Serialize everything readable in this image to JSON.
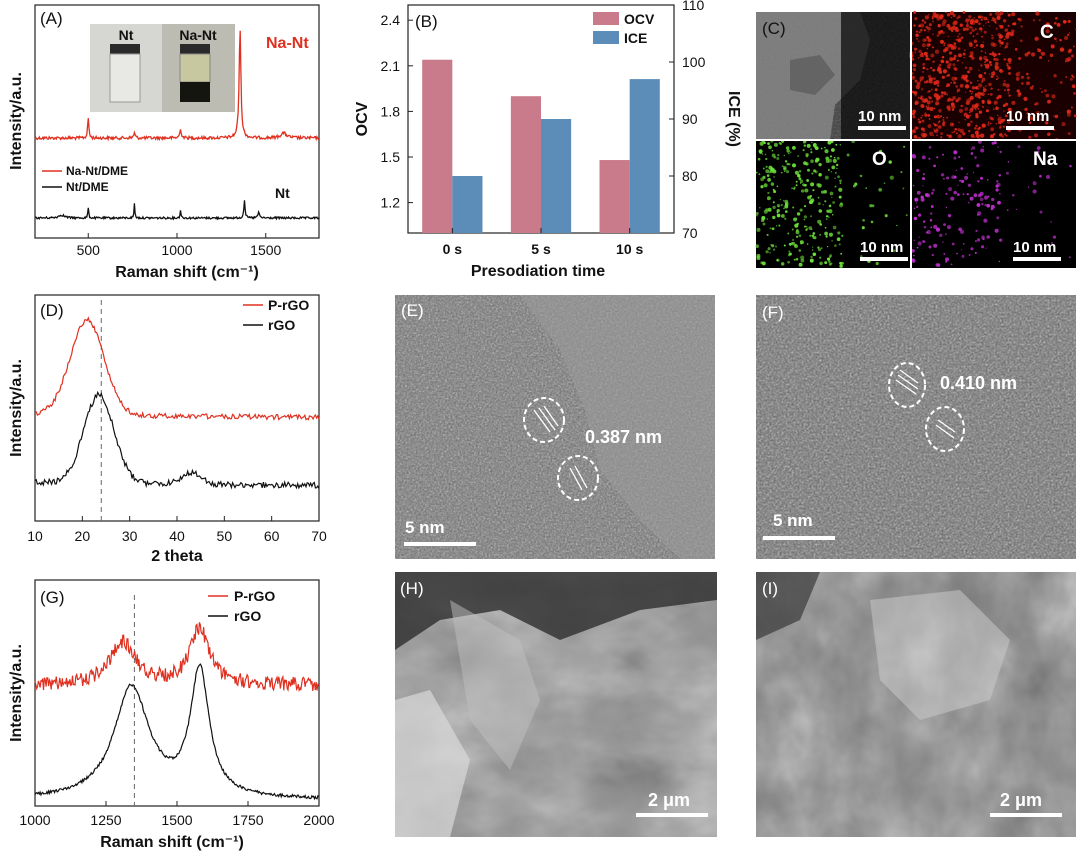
{
  "chart_data": [
    {
      "panel": "(A)",
      "type": "line",
      "xlabel": "Raman shift (cm⁻¹)",
      "ylabel": "Intensity/a.u.",
      "xlim": [
        200,
        1800
      ],
      "x_ticks": [
        "500",
        "1000",
        "1500"
      ],
      "series": [
        {
          "name": "Na-Nt/DME",
          "color": "#e03020",
          "peaks_x": [
            500,
            760,
            1020,
            1355
          ]
        },
        {
          "name": "Nt/DME",
          "color": "#111111",
          "peaks_x": [
            500,
            760,
            1020,
            1380
          ]
        }
      ],
      "curve_labels": [
        "Na-Nt",
        "Nt"
      ],
      "inset_labels": [
        "Nt",
        "Na-Nt"
      ]
    },
    {
      "panel": "(B)",
      "type": "bar",
      "xlabel": "Presodiation time",
      "ylabel": "OCV",
      "y2label": "ICE (%)",
      "categories": [
        "0 s",
        "5 s",
        "10 s"
      ],
      "ylim": [
        1.0,
        2.5
      ],
      "y_ticks": [
        "1.2",
        "1.5",
        "1.8",
        "2.1",
        "2.4"
      ],
      "y2lim": [
        70,
        110
      ],
      "y2_ticks": [
        "70",
        "80",
        "90",
        "100",
        "110"
      ],
      "series": [
        {
          "name": "OCV",
          "axis": "left",
          "color": "#c97b8c",
          "values": [
            2.14,
            1.9,
            1.48
          ]
        },
        {
          "name": "ICE",
          "axis": "right",
          "color": "#5b8db8",
          "values": [
            80,
            90,
            97
          ]
        }
      ]
    },
    {
      "panel": "(D)",
      "type": "line",
      "xlabel": "2 theta",
      "ylabel": "Intensity/a.u.",
      "xlim": [
        10,
        70
      ],
      "x_ticks": [
        "10",
        "20",
        "30",
        "40",
        "50",
        "60",
        "70"
      ],
      "dashed_line_x": 24,
      "series": [
        {
          "name": "P-rGO",
          "color": "#e03020",
          "peak_x": 21
        },
        {
          "name": "rGO",
          "color": "#111111",
          "peak_x": 23.5
        }
      ]
    },
    {
      "panel": "(G)",
      "type": "line",
      "xlabel": "Raman shift (cm⁻¹)",
      "ylabel": "Intensity/a.u.",
      "xlim": [
        1000,
        2000
      ],
      "x_ticks": [
        "1000",
        "1250",
        "1500",
        "1750",
        "2000"
      ],
      "dashed_line_x": 1350,
      "series": [
        {
          "name": "P-rGO",
          "color": "#e03020",
          "peaks_x": [
            1310,
            1580
          ]
        },
        {
          "name": "rGO",
          "color": "#111111",
          "peaks_x": [
            1340,
            1580
          ]
        }
      ]
    }
  ],
  "images": {
    "C": {
      "label": "(C)",
      "elements": [
        "C",
        "O",
        "Na"
      ],
      "scale_bars": [
        "10 nm",
        "10 nm",
        "10 nm",
        "10 nm"
      ]
    },
    "E": {
      "label": "(E)",
      "spacing": "0.387 nm",
      "scale_bar": "5 nm"
    },
    "F": {
      "label": "(F)",
      "spacing": "0.410 nm",
      "scale_bar": "5 nm"
    },
    "H": {
      "label": "(H)",
      "scale_bar": "2 μm"
    },
    "I": {
      "label": "(I)",
      "scale_bar": "2 μm"
    }
  }
}
